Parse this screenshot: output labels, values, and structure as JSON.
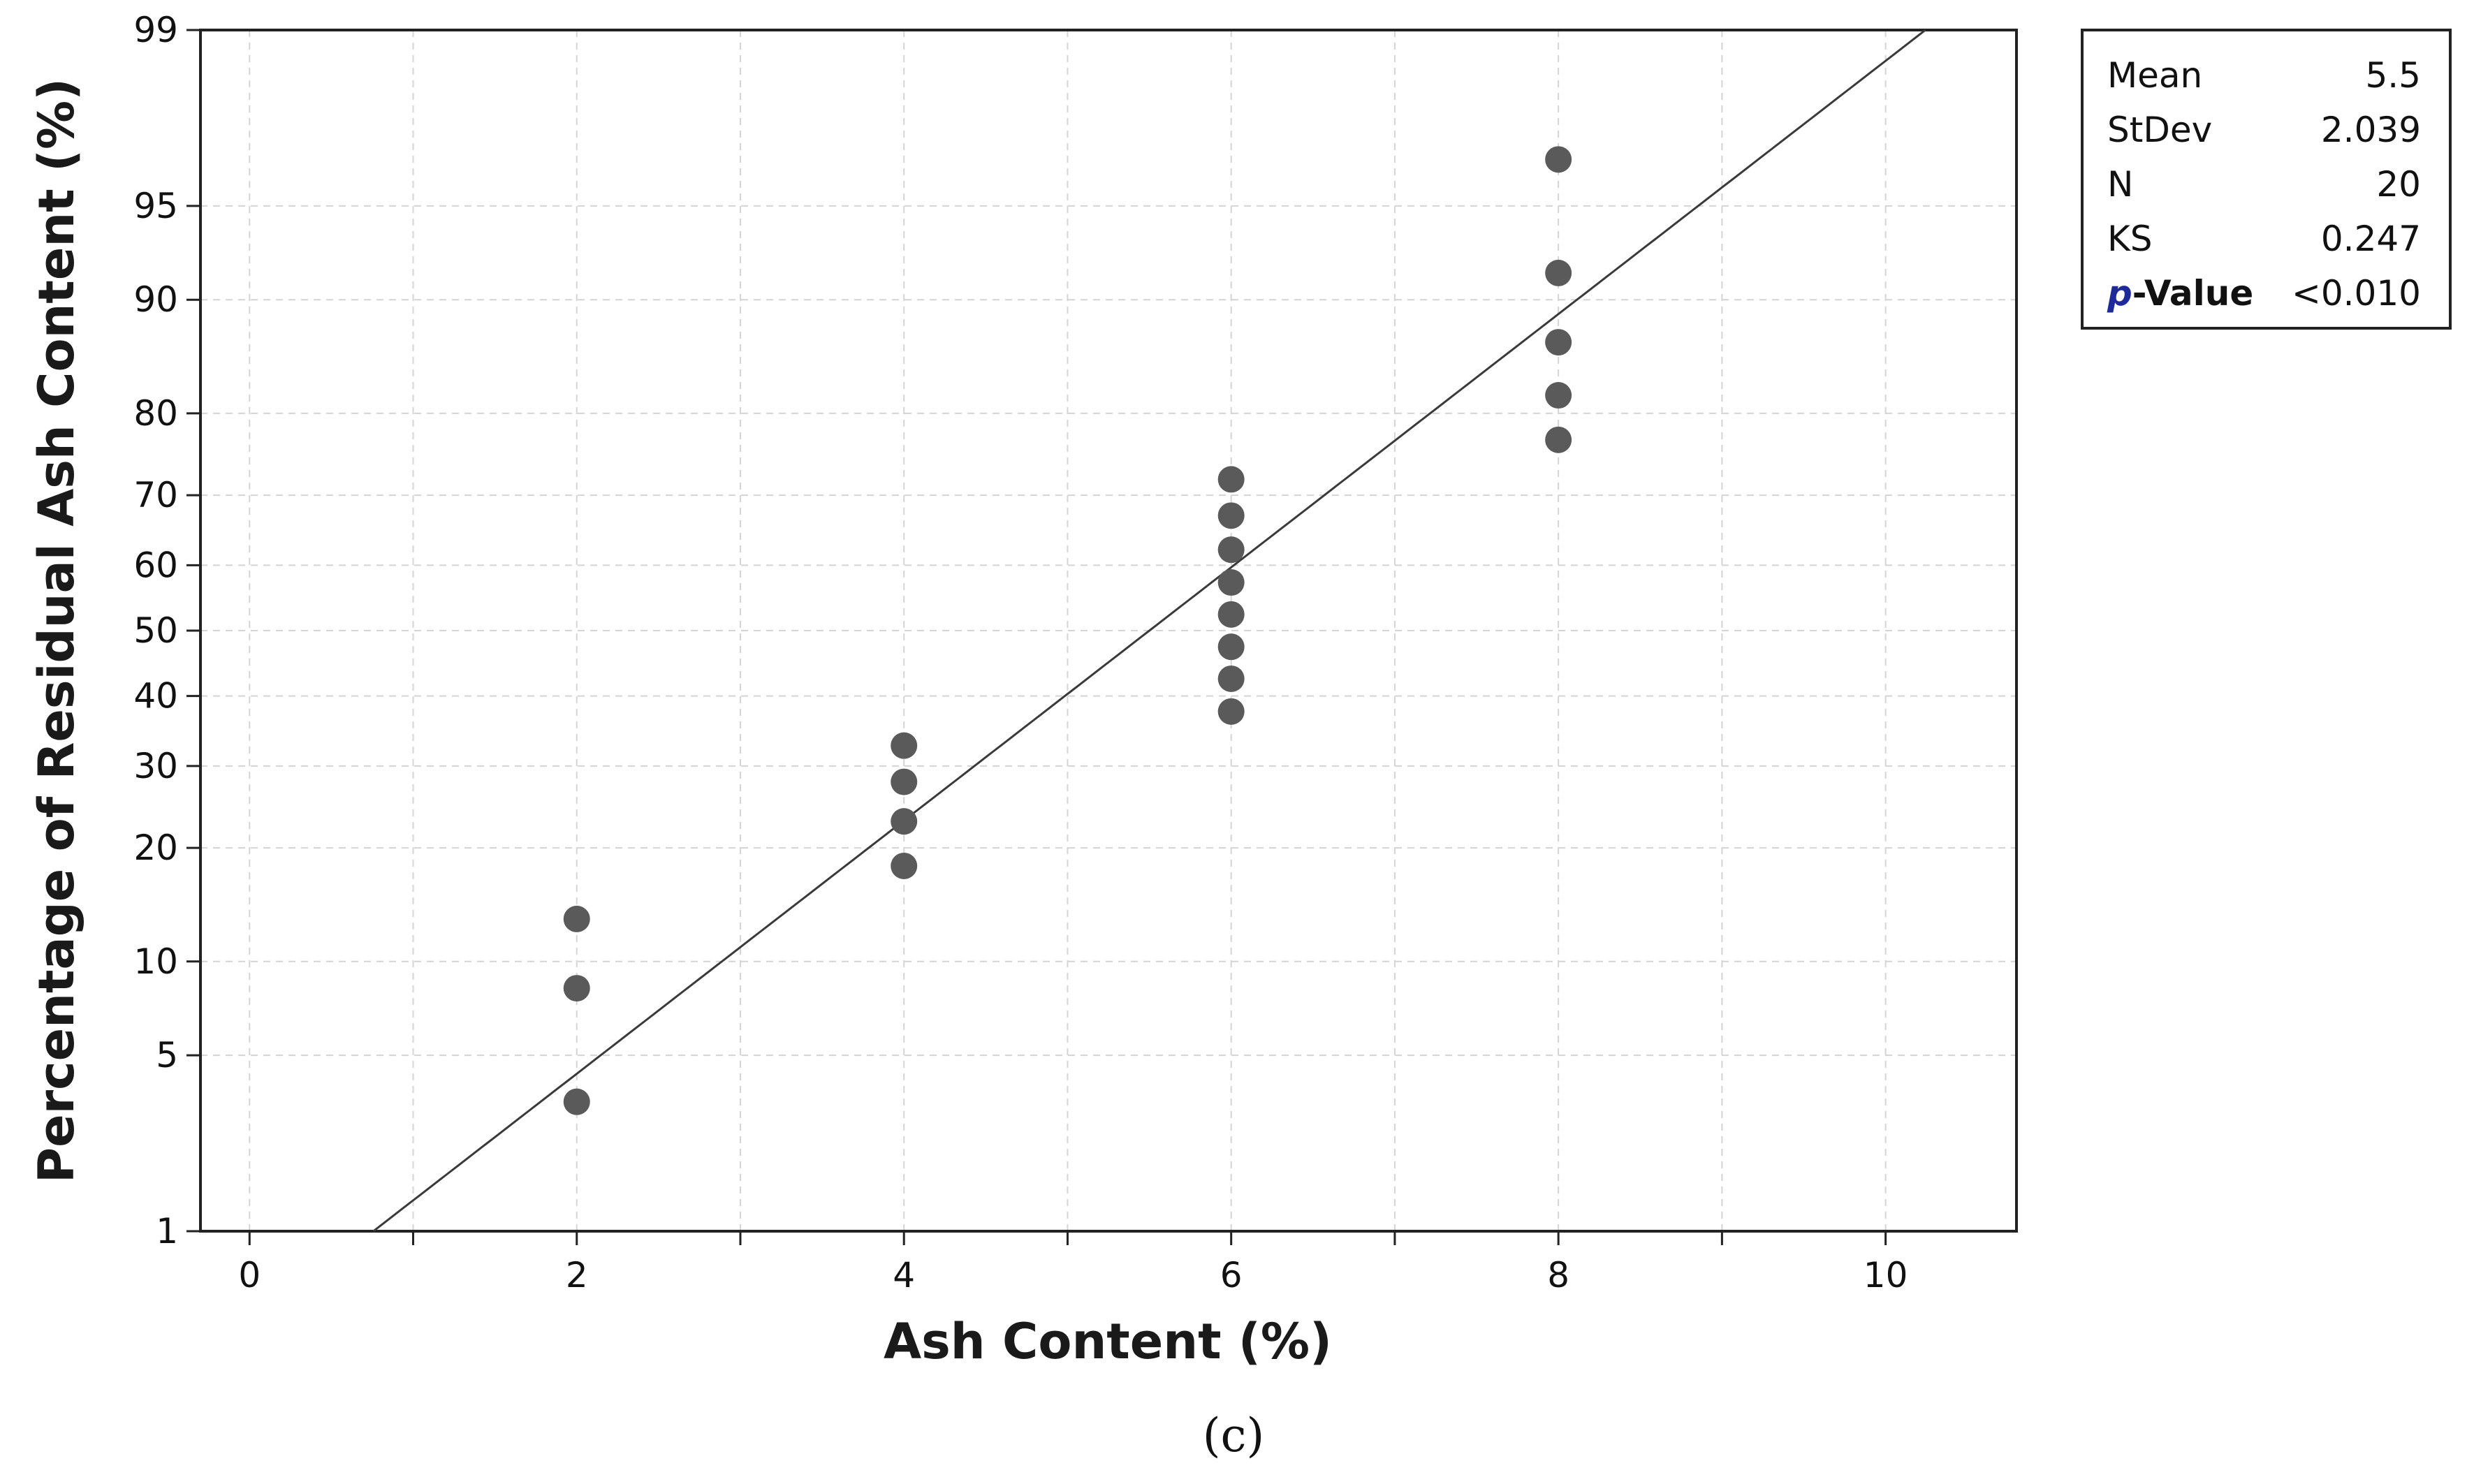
{
  "chart_data": {
    "type": "scatter",
    "xlabel": "Ash Content (%)",
    "ylabel": "Percentage of Residual Ash Content (%)",
    "xlim": [
      -0.3,
      10.8
    ],
    "ylim": [
      1,
      99
    ],
    "y_scale": "normal-probability",
    "grid": true,
    "x_ticks": [
      0,
      2,
      4,
      6,
      8,
      10
    ],
    "x_tick_labels": [
      "0",
      "2",
      "4",
      "6",
      "8",
      "10"
    ],
    "y_ticks": [
      1,
      5,
      10,
      20,
      30,
      40,
      50,
      60,
      70,
      80,
      90,
      95,
      99
    ],
    "y_tick_labels": [
      "1",
      "5",
      "10",
      "20",
      "30",
      "40",
      "50",
      "60",
      "70",
      "80",
      "90",
      "95",
      "99"
    ],
    "points": [
      {
        "x": 2,
        "y": 3.4
      },
      {
        "x": 2,
        "y": 8.3
      },
      {
        "x": 2,
        "y": 13.2
      },
      {
        "x": 4,
        "y": 18.1
      },
      {
        "x": 4,
        "y": 23.0
      },
      {
        "x": 4,
        "y": 27.9
      },
      {
        "x": 4,
        "y": 32.8
      },
      {
        "x": 6,
        "y": 37.7
      },
      {
        "x": 6,
        "y": 42.6
      },
      {
        "x": 6,
        "y": 47.5
      },
      {
        "x": 6,
        "y": 52.5
      },
      {
        "x": 6,
        "y": 57.4
      },
      {
        "x": 6,
        "y": 62.3
      },
      {
        "x": 6,
        "y": 67.2
      },
      {
        "x": 6,
        "y": 72.1
      },
      {
        "x": 8,
        "y": 77.0
      },
      {
        "x": 8,
        "y": 81.9
      },
      {
        "x": 8,
        "y": 86.8
      },
      {
        "x": 8,
        "y": 91.7
      },
      {
        "x": 8,
        "y": 96.6
      }
    ],
    "fit_line": {
      "mean": 5.5,
      "stdev": 2.039
    },
    "stats_legend_position": "top-right",
    "stats": [
      {
        "label": "Mean",
        "value": "5.5"
      },
      {
        "label": "StDev",
        "value": "2.039"
      },
      {
        "label": "N",
        "value": "20"
      },
      {
        "label": "KS",
        "value": "0.247"
      },
      {
        "label": "p-Value",
        "value": "<0.010"
      }
    ],
    "caption": "(c)",
    "colors": {
      "points": "#5a5a5a",
      "fit_line": "#3a3a3a",
      "grid": "#d4d4d4",
      "axis": "#222222"
    }
  }
}
